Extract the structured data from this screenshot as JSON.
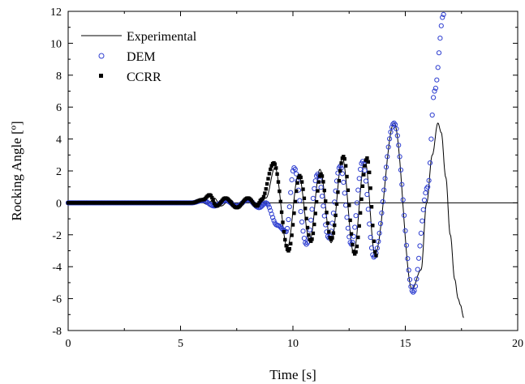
{
  "chart_data": {
    "type": "line",
    "title": "",
    "xlabel": "Time [s]",
    "ylabel": "Rocking Angle [º]",
    "xlim": [
      0,
      20
    ],
    "ylim": [
      -8,
      12
    ],
    "xticks": [
      0,
      5,
      10,
      15,
      20
    ],
    "yticks": [
      -8,
      -6,
      -4,
      -2,
      0,
      2,
      4,
      6,
      8,
      10,
      12
    ],
    "xtick_labels": [
      "0",
      "5",
      "10",
      "15",
      "20"
    ],
    "ytick_labels": [
      "-8",
      "-6",
      "-4",
      "-2",
      "0",
      "2",
      "4",
      "6",
      "8",
      "10",
      "12"
    ],
    "zero_line": true,
    "grid": false,
    "legend_position": "top-left",
    "series": [
      {
        "name": "Experimental",
        "style": "line",
        "color": "#000000",
        "points": [
          [
            0.0,
            0.0
          ],
          [
            5.5,
            0.0
          ],
          [
            5.9,
            0.05
          ],
          [
            6.2,
            -0.1
          ],
          [
            6.5,
            0.3
          ],
          [
            6.8,
            -0.2
          ],
          [
            7.2,
            0.2
          ],
          [
            7.6,
            -0.3
          ],
          [
            8.0,
            0.3
          ],
          [
            8.4,
            -0.3
          ],
          [
            8.8,
            0.3
          ],
          [
            9.2,
            2.2
          ],
          [
            9.75,
            -2.8
          ],
          [
            10.25,
            1.8
          ],
          [
            10.75,
            -2.4
          ],
          [
            11.2,
            2.1
          ],
          [
            11.7,
            -2.5
          ],
          [
            12.2,
            2.8
          ],
          [
            12.7,
            -3.1
          ],
          [
            13.2,
            2.7
          ],
          [
            13.65,
            -3.2
          ],
          [
            14.5,
            5.0
          ],
          [
            15.3,
            -5.4
          ],
          [
            15.7,
            -4.2
          ],
          [
            15.95,
            0.0
          ],
          [
            16.2,
            3.0
          ],
          [
            16.45,
            5.0
          ],
          [
            16.6,
            4.4
          ],
          [
            16.8,
            1.6
          ],
          [
            17.0,
            -2.0
          ],
          [
            17.2,
            -4.8
          ],
          [
            17.35,
            -6.0
          ],
          [
            17.45,
            -6.4
          ],
          [
            17.6,
            -7.2
          ]
        ]
      },
      {
        "name": "DEM",
        "style": "marker-circle",
        "color": "#2f3fd0",
        "points": [
          [
            0.0,
            0.0
          ],
          [
            5.5,
            0.0
          ],
          [
            6.0,
            0.15
          ],
          [
            6.5,
            -0.2
          ],
          [
            7.0,
            0.15
          ],
          [
            7.5,
            -0.2
          ],
          [
            8.0,
            0.2
          ],
          [
            8.5,
            -0.3
          ],
          [
            8.8,
            0.0
          ],
          [
            9.3,
            -1.4
          ],
          [
            9.7,
            -1.8
          ],
          [
            10.05,
            2.2
          ],
          [
            10.6,
            -2.6
          ],
          [
            11.1,
            1.8
          ],
          [
            11.6,
            -2.2
          ],
          [
            12.1,
            2.3
          ],
          [
            12.6,
            -2.6
          ],
          [
            13.1,
            2.6
          ],
          [
            13.6,
            -3.4
          ],
          [
            14.5,
            5.0
          ],
          [
            15.35,
            -5.6
          ],
          [
            16.0,
            1.0
          ],
          [
            16.3,
            7.0
          ],
          [
            16.7,
            11.8
          ]
        ]
      },
      {
        "name": "CCRR",
        "style": "marker-square",
        "color": "#000000",
        "points": [
          [
            0.0,
            0.0
          ],
          [
            5.5,
            0.0
          ],
          [
            6.0,
            0.2
          ],
          [
            6.3,
            0.5
          ],
          [
            6.6,
            -0.2
          ],
          [
            7.0,
            0.3
          ],
          [
            7.5,
            -0.3
          ],
          [
            8.0,
            0.3
          ],
          [
            8.4,
            -0.2
          ],
          [
            8.6,
            0.2
          ],
          [
            9.15,
            2.5
          ],
          [
            9.8,
            -3.0
          ],
          [
            10.3,
            1.7
          ],
          [
            10.8,
            -2.4
          ],
          [
            11.25,
            1.8
          ],
          [
            11.7,
            -2.3
          ],
          [
            12.25,
            2.9
          ],
          [
            12.75,
            -3.2
          ],
          [
            13.3,
            2.8
          ],
          [
            13.7,
            -3.3
          ]
        ]
      }
    ]
  }
}
